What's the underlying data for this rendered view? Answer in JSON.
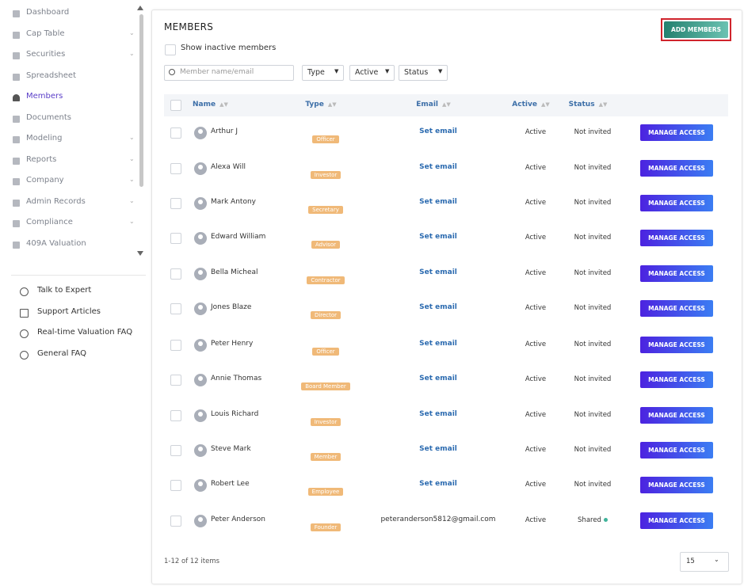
{
  "sidebar": {
    "nav": [
      "Dashboard",
      "Cap Table",
      "Securities",
      "Spreadsheet",
      "Members",
      "Documents",
      "Modeling",
      "Reports",
      "Company",
      "Admin Records",
      "Compliance",
      "409A Valuation"
    ],
    "help": [
      "Talk to Expert",
      "Support Articles",
      "Real-time Valuation FAQ",
      "General FAQ"
    ]
  },
  "main": {
    "title": "MEMBERS",
    "add_button": "ADD MEMBERS",
    "show_inactive": "Show inactive members",
    "search_placeholder": "Member name/email",
    "filters": [
      "Type",
      "Active",
      "Status"
    ],
    "table": {
      "headers": [
        "Name",
        "Type",
        "Email",
        "Active",
        "Status"
      ],
      "rows": [
        {
          "name": "Arthur J",
          "type": "Officer",
          "email": "Set email",
          "active": "Active",
          "status": "Not invited",
          "action": "MANAGE ACCESS"
        },
        {
          "name": "Alexa Will",
          "type": "Investor",
          "email": "Set email",
          "active": "Active",
          "status": "Not invited",
          "action": "MANAGE ACCESS"
        },
        {
          "name": "Mark Antony",
          "type": "Secretary",
          "email": "Set email",
          "active": "Active",
          "status": "Not invited",
          "action": "MANAGE ACCESS"
        },
        {
          "name": "Edward William",
          "type": "Advisor",
          "email": "Set email",
          "active": "Active",
          "status": "Not invited",
          "action": "MANAGE ACCESS"
        },
        {
          "name": "Bella Micheal",
          "type": "Contractor",
          "email": "Set email",
          "active": "Active",
          "status": "Not invited",
          "action": "MANAGE ACCESS"
        },
        {
          "name": "Jones Blaze",
          "type": "Director",
          "email": "Set email",
          "active": "Active",
          "status": "Not invited",
          "action": "MANAGE ACCESS"
        },
        {
          "name": "Peter Henry",
          "type": "Officer",
          "email": "Set email",
          "active": "Active",
          "status": "Not invited",
          "action": "MANAGE ACCESS"
        },
        {
          "name": "Annie Thomas",
          "type": "Board Member",
          "email": "Set email",
          "active": "Active",
          "status": "Not invited",
          "action": "MANAGE ACCESS"
        },
        {
          "name": "Louis Richard",
          "type": "Investor",
          "email": "Set email",
          "active": "Active",
          "status": "Not invited",
          "action": "MANAGE ACCESS"
        },
        {
          "name": "Steve Mark",
          "type": "Member",
          "email": "Set email",
          "active": "Active",
          "status": "Not invited",
          "action": "MANAGE ACCESS"
        },
        {
          "name": "Robert Lee",
          "type": "Employee",
          "email": "Set email",
          "active": "Active",
          "status": "Not invited",
          "action": "MANAGE ACCESS"
        },
        {
          "name": "Peter Anderson",
          "type": "Founder",
          "email": "peteranderson5812@gmail.com",
          "active": "Active",
          "status": "Shared",
          "action": "MANAGE ACCESS"
        }
      ]
    },
    "footer": {
      "count": "1-12 of 12 items",
      "page_size": "15"
    }
  }
}
